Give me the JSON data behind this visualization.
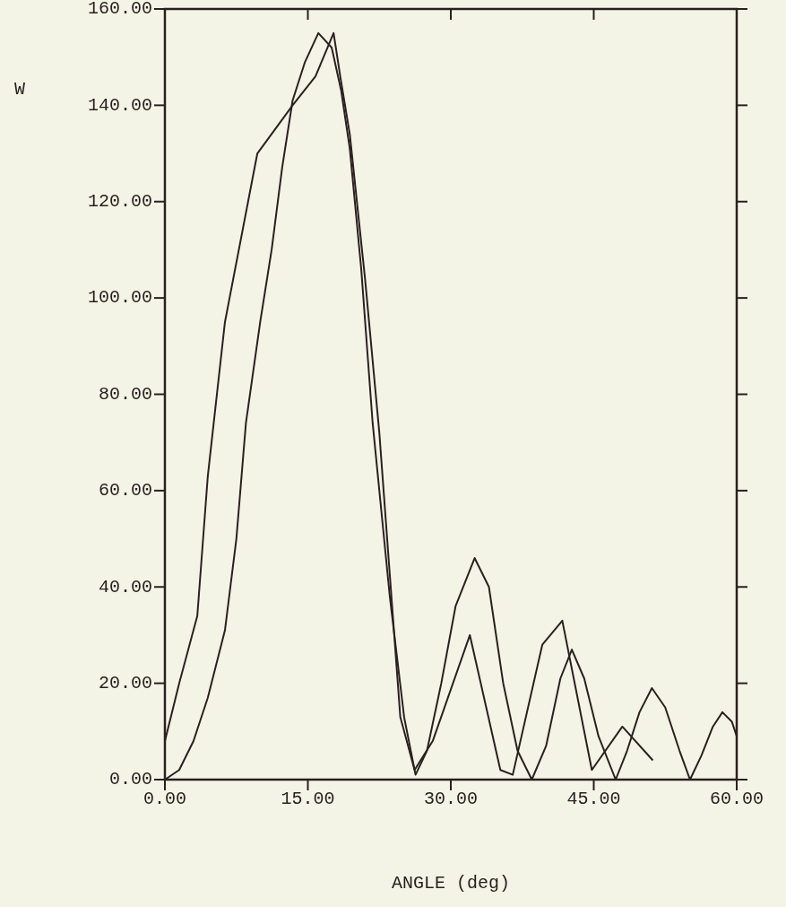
{
  "chart_data": {
    "type": "line",
    "xlabel": "ANGLE (deg)",
    "ylabel": "W",
    "xlim": [
      0,
      60
    ],
    "ylim": [
      0,
      160
    ],
    "xticks": [
      {
        "value": 0,
        "label": "0.00"
      },
      {
        "value": 15,
        "label": "15.00"
      },
      {
        "value": 30,
        "label": "30.00"
      },
      {
        "value": 45,
        "label": "45.00"
      },
      {
        "value": 60,
        "label": "60.00"
      }
    ],
    "yticks": [
      {
        "value": 0,
        "label": "0.00"
      },
      {
        "value": 20,
        "label": "20.00"
      },
      {
        "value": 40,
        "label": "40.00"
      },
      {
        "value": 60,
        "label": "60.00"
      },
      {
        "value": 80,
        "label": "80.00"
      },
      {
        "value": 100,
        "label": "100.00"
      },
      {
        "value": 120,
        "label": "120.00"
      },
      {
        "value": 140,
        "label": "140.00"
      },
      {
        "value": 160,
        "label": "160.00"
      }
    ],
    "grid": false,
    "marker": "none",
    "line_style": "solid",
    "series": [
      {
        "color": "#2a2020",
        "x": [
          0,
          1.5,
          3,
          4.5,
          6.3,
          7.5,
          8.5,
          10,
          11.2,
          12.3,
          13.4,
          14.7,
          16.1,
          17.5,
          18.5,
          19.4,
          20.6,
          21.8,
          23.6,
          25.1,
          26.3,
          27.5,
          29,
          30.5,
          32.5,
          34,
          35.5,
          37,
          38.5,
          40,
          41.5,
          42.7,
          44,
          45.5,
          47.3,
          48.5,
          49.8,
          51.1,
          52.5,
          54,
          55.1,
          56.3,
          57.5,
          58.5,
          59.5,
          60
        ],
        "values": [
          0,
          2,
          8,
          17,
          31,
          50,
          74,
          95,
          110,
          127,
          141,
          149,
          155,
          152,
          143,
          131,
          106,
          74,
          38,
          13,
          1,
          6,
          20,
          36,
          46,
          40,
          20,
          6,
          0,
          7,
          21,
          27,
          21,
          9,
          0,
          6,
          14,
          19,
          15,
          6,
          0,
          5,
          11,
          14,
          12,
          9
        ]
      },
      {
        "color": "#2a2020",
        "x": [
          0,
          1.5,
          3.4,
          4.5,
          6.3,
          9.7,
          13.4,
          15.8,
          17.7,
          18.4,
          19.4,
          21,
          22.5,
          24.7,
          26.2,
          28.1,
          32,
          35.2,
          36.5,
          39.6,
          41.7,
          44.8,
          48,
          51.2
        ],
        "values": [
          8,
          20,
          34,
          63,
          95,
          130,
          140,
          146,
          155,
          146,
          134,
          104,
          72,
          13,
          2,
          8,
          30,
          2,
          1,
          28,
          33,
          2,
          11,
          4
        ]
      }
    ]
  }
}
